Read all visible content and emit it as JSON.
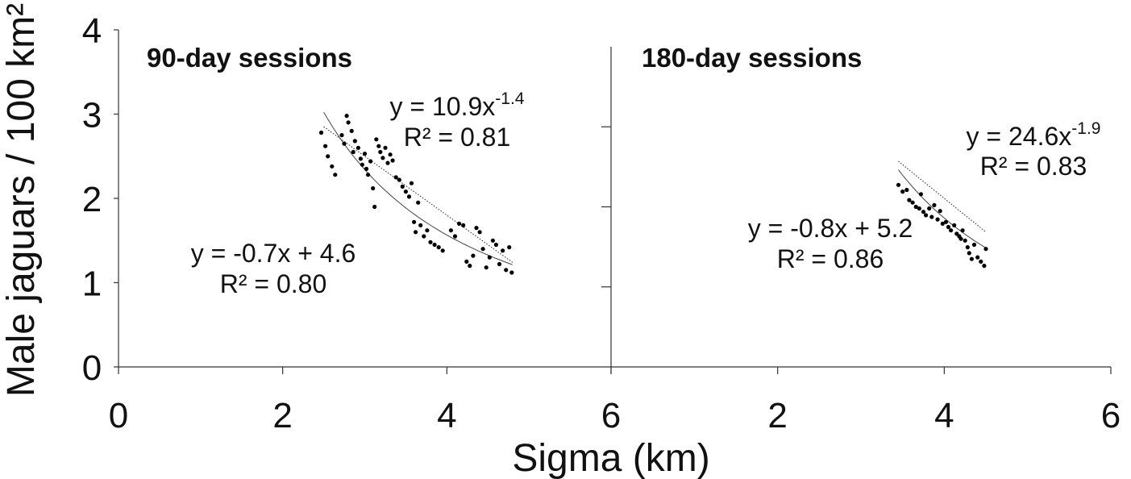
{
  "chart_data": {
    "type": "scatter",
    "ylabel": "Male jaguars / 100 km²",
    "xlabel": "Sigma (km)",
    "ylim": [
      0,
      4
    ],
    "y_ticks": [
      "0",
      "1",
      "2",
      "3",
      "4"
    ],
    "grid": false,
    "panels": [
      {
        "title": "90-day sessions",
        "xlim": [
          0,
          6
        ],
        "x_ticks": [
          "0",
          "2",
          "4",
          "6"
        ],
        "power_fit": {
          "a": 10.9,
          "b": -1.4,
          "x_range": [
            2.5,
            4.8
          ],
          "label_prefix": "y = 10.9x",
          "label_exp": "-1.4",
          "r2": "R² = 0.81"
        },
        "linear_fit": {
          "m": -0.7,
          "c": 4.6,
          "x_range": [
            2.5,
            4.8
          ],
          "label": "y = -0.7x + 4.6",
          "r2": "R² = 0.80"
        },
        "points": [
          [
            2.47,
            2.78
          ],
          [
            2.52,
            2.62
          ],
          [
            2.55,
            2.5
          ],
          [
            2.6,
            2.38
          ],
          [
            2.64,
            2.28
          ],
          [
            2.72,
            2.75
          ],
          [
            2.75,
            2.65
          ],
          [
            2.78,
            2.98
          ],
          [
            2.8,
            2.9
          ],
          [
            2.84,
            2.8
          ],
          [
            2.86,
            2.55
          ],
          [
            2.88,
            2.68
          ],
          [
            2.92,
            2.6
          ],
          [
            2.95,
            2.47
          ],
          [
            2.97,
            2.4
          ],
          [
            3.0,
            2.53
          ],
          [
            3.02,
            2.35
          ],
          [
            3.04,
            2.28
          ],
          [
            3.07,
            2.44
          ],
          [
            3.1,
            2.12
          ],
          [
            3.12,
            1.9
          ],
          [
            3.14,
            2.7
          ],
          [
            3.17,
            2.62
          ],
          [
            3.19,
            2.55
          ],
          [
            3.22,
            2.48
          ],
          [
            3.25,
            2.6
          ],
          [
            3.28,
            2.42
          ],
          [
            3.31,
            2.52
          ],
          [
            3.34,
            2.45
          ],
          [
            3.38,
            2.25
          ],
          [
            3.42,
            2.22
          ],
          [
            3.46,
            2.14
          ],
          [
            3.5,
            2.08
          ],
          [
            3.54,
            2.02
          ],
          [
            3.57,
            2.18
          ],
          [
            3.6,
            1.72
          ],
          [
            3.62,
            1.6
          ],
          [
            3.65,
            1.95
          ],
          [
            3.68,
            1.68
          ],
          [
            3.72,
            1.55
          ],
          [
            3.76,
            1.62
          ],
          [
            3.8,
            1.48
          ],
          [
            3.85,
            1.45
          ],
          [
            3.9,
            1.42
          ],
          [
            3.95,
            1.38
          ],
          [
            4.05,
            1.62
          ],
          [
            4.1,
            1.55
          ],
          [
            4.15,
            1.7
          ],
          [
            4.2,
            1.68
          ],
          [
            4.24,
            1.25
          ],
          [
            4.28,
            1.2
          ],
          [
            4.32,
            1.32
          ],
          [
            4.36,
            1.65
          ],
          [
            4.4,
            1.6
          ],
          [
            4.44,
            1.4
          ],
          [
            4.48,
            1.18
          ],
          [
            4.52,
            1.3
          ],
          [
            4.56,
            1.5
          ],
          [
            4.6,
            1.45
          ],
          [
            4.64,
            1.22
          ],
          [
            4.68,
            1.38
          ],
          [
            4.72,
            1.15
          ],
          [
            4.76,
            1.42
          ],
          [
            4.79,
            1.12
          ]
        ]
      },
      {
        "title": "180-day sessions",
        "xlim": [
          0,
          6
        ],
        "x_ticks": [
          "",
          "2",
          "4",
          "6"
        ],
        "power_fit": {
          "a": 24.6,
          "b": -1.9,
          "x_range": [
            3.45,
            4.5
          ],
          "label_prefix": "y = 24.6x",
          "label_exp": "-1.9",
          "r2": "R² = 0.83"
        },
        "linear_fit": {
          "m": -0.8,
          "c": 5.2,
          "x_range": [
            3.45,
            4.5
          ],
          "label": "y = -0.8x + 5.2",
          "r2": "R² = 0.86"
        },
        "points": [
          [
            3.45,
            2.16
          ],
          [
            3.5,
            2.08
          ],
          [
            3.55,
            2.1
          ],
          [
            3.58,
            1.98
          ],
          [
            3.62,
            1.95
          ],
          [
            3.66,
            1.9
          ],
          [
            3.7,
            1.88
          ],
          [
            3.72,
            2.05
          ],
          [
            3.75,
            1.84
          ],
          [
            3.78,
            1.8
          ],
          [
            3.82,
            1.88
          ],
          [
            3.85,
            1.78
          ],
          [
            3.88,
            1.92
          ],
          [
            3.92,
            1.75
          ],
          [
            3.95,
            1.85
          ],
          [
            3.98,
            1.7
          ],
          [
            4.02,
            1.72
          ],
          [
            4.05,
            1.66
          ],
          [
            4.08,
            1.62
          ],
          [
            4.12,
            1.68
          ],
          [
            4.15,
            1.58
          ],
          [
            4.18,
            1.55
          ],
          [
            4.2,
            1.52
          ],
          [
            4.22,
            1.62
          ],
          [
            4.25,
            1.5
          ],
          [
            4.28,
            1.42
          ],
          [
            4.3,
            1.35
          ],
          [
            4.33,
            1.28
          ],
          [
            4.36,
            1.45
          ],
          [
            4.4,
            1.3
          ],
          [
            4.44,
            1.25
          ],
          [
            4.48,
            1.2
          ],
          [
            4.5,
            1.4
          ]
        ]
      }
    ]
  }
}
